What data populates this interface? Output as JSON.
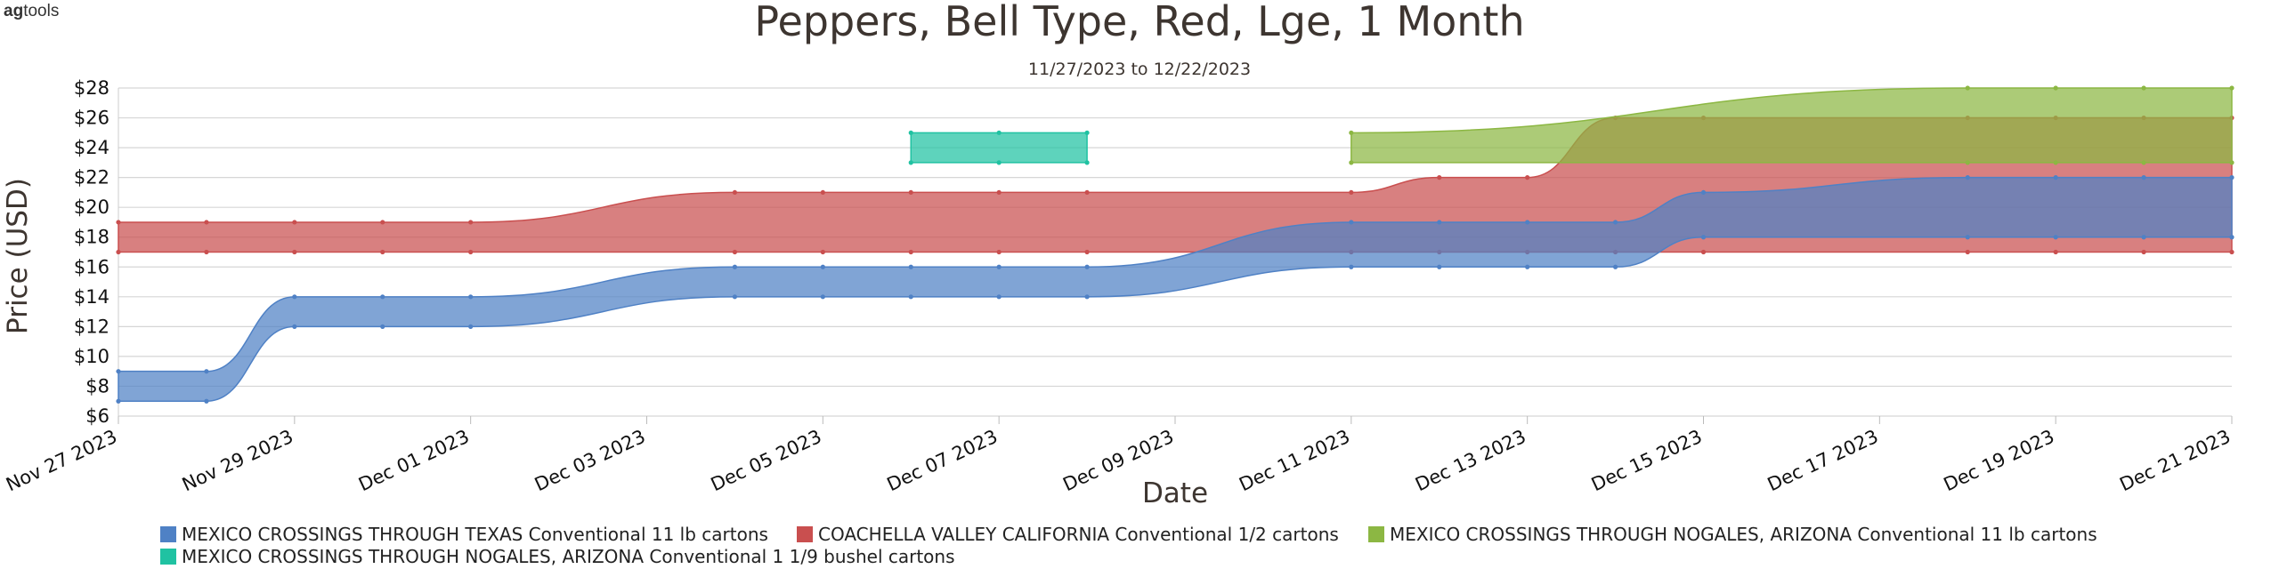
{
  "logo": {
    "bold": "ag",
    "rest": "tools"
  },
  "chart_data": {
    "type": "area",
    "title": "Peppers, Bell Type, Red, Lge, 1 Month",
    "subtitle": "11/27/2023 to 12/22/2023",
    "xlabel": "Date",
    "ylabel": "Price (USD)",
    "x_range": [
      "2023-11-27",
      "2023-12-21"
    ],
    "x_tick_labels": [
      "Nov 27 2023",
      "Nov 29 2023",
      "Dec 01 2023",
      "Dec 03 2023",
      "Dec 05 2023",
      "Dec 07 2023",
      "Dec 09 2023",
      "Dec 11 2023",
      "Dec 13 2023",
      "Dec 15 2023",
      "Dec 17 2023",
      "Dec 19 2023",
      "Dec 21 2023"
    ],
    "ylim": [
      6,
      28
    ],
    "y_ticks": [
      6,
      8,
      10,
      12,
      14,
      16,
      18,
      20,
      22,
      24,
      26,
      28
    ],
    "y_tick_labels": [
      "$6",
      "$8",
      "$10",
      "$12",
      "$14",
      "$16",
      "$18",
      "$20",
      "$22",
      "$24",
      "$26",
      "$28"
    ],
    "grid": true,
    "legend_position": "bottom",
    "series": [
      {
        "name": "COACHELLA VALLEY CALIFORNIA Conventional 1/2 cartons",
        "color": "#c94f4f",
        "dates": [
          "2023-11-27",
          "2023-11-28",
          "2023-11-29",
          "2023-11-30",
          "2023-12-01",
          "2023-12-04",
          "2023-12-05",
          "2023-12-06",
          "2023-12-07",
          "2023-12-08",
          "2023-12-11",
          "2023-12-12",
          "2023-12-13",
          "2023-12-14",
          "2023-12-15",
          "2023-12-18",
          "2023-12-19",
          "2023-12-20",
          "2023-12-21"
        ],
        "low": [
          17,
          17,
          17,
          17,
          17,
          17,
          17,
          17,
          17,
          17,
          17,
          17,
          17,
          17,
          17,
          17,
          17,
          17,
          17
        ],
        "high": [
          19,
          19,
          19,
          19,
          19,
          21,
          21,
          21,
          21,
          21,
          21,
          22,
          22,
          26,
          26,
          26,
          26,
          26,
          26
        ]
      },
      {
        "name": "MEXICO CROSSINGS THROUGH NOGALES, ARIZONA Conventional 11 lb cartons",
        "color": "#8cb743",
        "dates": [
          "2023-12-11",
          "2023-12-18",
          "2023-12-19",
          "2023-12-20",
          "2023-12-21"
        ],
        "low": [
          23,
          23,
          23,
          23,
          23
        ],
        "high": [
          25,
          28,
          28,
          28,
          28
        ]
      },
      {
        "name": "MEXICO CROSSINGS THROUGH TEXAS Conventional 11 lb cartons",
        "color": "#4f81c5",
        "dates": [
          "2023-11-27",
          "2023-11-28",
          "2023-11-29",
          "2023-11-30",
          "2023-12-01",
          "2023-12-04",
          "2023-12-05",
          "2023-12-06",
          "2023-12-07",
          "2023-12-08",
          "2023-12-11",
          "2023-12-12",
          "2023-12-13",
          "2023-12-14",
          "2023-12-15",
          "2023-12-18",
          "2023-12-19",
          "2023-12-20",
          "2023-12-21"
        ],
        "low": [
          7,
          7,
          12,
          12,
          12,
          14,
          14,
          14,
          14,
          14,
          16,
          16,
          16,
          16,
          18,
          18,
          18,
          18,
          18
        ],
        "high": [
          9,
          9,
          14,
          14,
          14,
          16,
          16,
          16,
          16,
          16,
          19,
          19,
          19,
          19,
          21,
          22,
          22,
          22,
          22
        ]
      },
      {
        "name": "MEXICO CROSSINGS THROUGH NOGALES, ARIZONA Conventional 1 1/9 bushel cartons",
        "color": "#20c2a2",
        "dates": [
          "2023-12-06",
          "2023-12-07",
          "2023-12-08"
        ],
        "low": [
          23,
          23,
          23
        ],
        "high": [
          25,
          25,
          25
        ]
      }
    ],
    "legend_order": [
      2,
      0,
      1,
      3
    ]
  }
}
